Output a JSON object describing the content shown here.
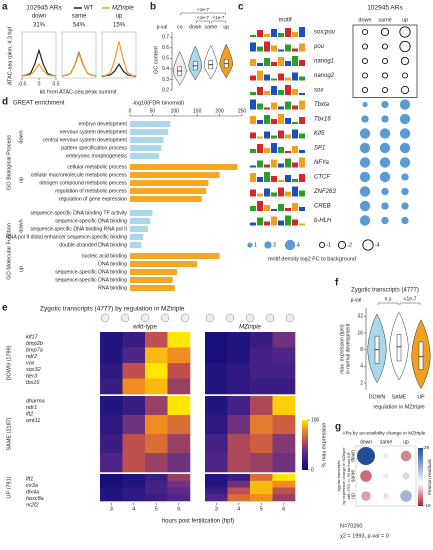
{
  "chart_data": [
    {
      "type": "line",
      "letter": "a",
      "title": "102945 ARs",
      "ylabel": "ATAC-seq rpkm, 4.3 hpf",
      "xlabel": "kb from ATAC-seq peak summit",
      "series_names": [
        "WT",
        "MZtriple"
      ],
      "colors": [
        "#222222",
        "#f0a020"
      ],
      "x": [
        -0.5,
        -0.375,
        -0.25,
        -0.125,
        0,
        0.125,
        0.25,
        0.375,
        0.5
      ],
      "xlim": [
        -0.5,
        0.5
      ],
      "xticks": [
        -0.5,
        0,
        0.5
      ],
      "ylim": [
        0,
        1
      ],
      "panels": [
        {
          "name": "down",
          "share": "31%",
          "values": [
            [
              0.05,
              0.06,
              0.1,
              0.3,
              0.6,
              0.3,
              0.1,
              0.06,
              0.05
            ],
            [
              0.05,
              0.05,
              0.07,
              0.16,
              0.3,
              0.16,
              0.07,
              0.05,
              0.05
            ]
          ]
        },
        {
          "name": "same",
          "share": "54%",
          "values": [
            [
              0.05,
              0.06,
              0.1,
              0.28,
              0.55,
              0.28,
              0.1,
              0.06,
              0.05
            ],
            [
              0.05,
              0.06,
              0.1,
              0.27,
              0.53,
              0.27,
              0.1,
              0.06,
              0.05
            ]
          ]
        },
        {
          "name": "up",
          "share": "15%",
          "values": [
            [
              0.04,
              0.05,
              0.07,
              0.15,
              0.3,
              0.15,
              0.07,
              0.05,
              0.04
            ],
            [
              0.05,
              0.06,
              0.12,
              0.4,
              0.8,
              0.4,
              0.12,
              0.06,
              0.05
            ]
          ]
        }
      ]
    },
    {
      "type": "violin",
      "letter": "b",
      "pval_label": "p-val",
      "comparisons": [
        "<1e-7",
        "<1e-7",
        "<1e-7"
      ],
      "ylabel": "GC content",
      "categories": [
        "co",
        "down",
        "same",
        "up"
      ],
      "colors": [
        "#eeeeee",
        "#a9d8ea",
        "#ffffff",
        "#f0a020"
      ],
      "medians": [
        0.38,
        0.43,
        0.44,
        0.45
      ],
      "q1": [
        0.34,
        0.39,
        0.4,
        0.41
      ],
      "q3": [
        0.42,
        0.47,
        0.48,
        0.49
      ],
      "ylim": [
        0.2,
        0.75
      ],
      "yticks": [
        0.2,
        0.3,
        0.4,
        0.5,
        0.6,
        0.7
      ]
    },
    {
      "type": "dot-matrix",
      "letter": "c",
      "motif_header": "motif",
      "title": "102945 ARs",
      "columns": [
        "down",
        "same",
        "up"
      ],
      "rows": [
        "sox;pou",
        "pou",
        "nanog1",
        "nanog2",
        "sox",
        "Tbxta",
        "Tbx16",
        "Klf5",
        "SP1",
        "NFYa",
        "CTCF",
        "ZNF263",
        "CREB",
        "b-HLH"
      ],
      "values": [
        [
          -1,
          -2,
          -4
        ],
        [
          -1,
          -1,
          -4
        ],
        [
          -1,
          -1,
          -2
        ],
        [
          -1,
          -1,
          -1
        ],
        [
          -1,
          -1,
          -2
        ],
        [
          1,
          2,
          4
        ],
        [
          2,
          2,
          4
        ],
        [
          4,
          4,
          4
        ],
        [
          4,
          4,
          4
        ],
        [
          4,
          4,
          4
        ],
        [
          4,
          4,
          2
        ],
        [
          4,
          2,
          2
        ],
        [
          4,
          2,
          2
        ],
        [
          4,
          2,
          2
        ]
      ],
      "legend_title": "motif density log2 FC to background",
      "legend_sizes": [
        1,
        2,
        4,
        -1,
        -2,
        -4
      ]
    },
    {
      "type": "barh",
      "letter": "d",
      "title": "GREAT enrichment",
      "xlabel": "-log10(FDR binomial)",
      "xlim": [
        0,
        250
      ],
      "xticks": [
        0,
        50,
        100,
        150,
        200,
        250
      ],
      "groups": [
        {
          "name": "GO Biological Process",
          "subgroups": [
            {
              "name": "down",
              "color": "#a9d8ea",
              "categories": [
                "embryo development",
                "nervous system development",
                "central nervous system development",
                "pattern specification process",
                "embryonic morphogenesis"
              ],
              "values": [
                90,
                85,
                75,
                70,
                65
              ]
            },
            {
              "name": "up",
              "color": "#f5a623",
              "categories": [
                "cellular metabolic process",
                "cellular macromolecule metabolic process",
                "nitrogen compound metabolic process",
                "regulation of metabolic process",
                "regulation of gene expression"
              ],
              "values": [
                240,
                200,
                175,
                170,
                160
              ]
            }
          ]
        },
        {
          "name": "GO Molecular Function",
          "subgroups": [
            {
              "name": "down",
              "color": "#a9d8ea",
              "categories": [
                "sequence-specific DNA binding TF activity",
                "sequence-specific DNA binding",
                "sequence-specific DNA binding RNA pol II",
                "RNA pol II distal enhancer sequence-specific binding",
                "double-stranded DNA binding"
              ],
              "values": [
                50,
                45,
                40,
                30,
                25
              ]
            },
            {
              "name": "up",
              "color": "#f5a623",
              "categories": [
                "nucleic acid binding",
                "DNA binding",
                "sequence-specific DNA binding",
                "sequence-specific DNA binding",
                "RNA binding"
              ],
              "values": [
                200,
                150,
                105,
                95,
                100
              ]
            }
          ]
        }
      ]
    },
    {
      "type": "heatmap",
      "letter": "e",
      "title": "Zygotic transcripts (4777) by regulation in MZtriple",
      "conditions": [
        "wild-type",
        "MZtriple"
      ],
      "x": [
        3,
        4,
        5,
        6
      ],
      "xlim": [
        2.5,
        6.5
      ],
      "xticks": [
        3,
        4,
        5,
        6
      ],
      "xlabel": "hours post fertilization (hpf)",
      "colorbar_label": "% max expression",
      "clim": [
        0,
        100
      ],
      "colorbar_ticks": [
        0,
        100
      ],
      "groups": [
        {
          "name": "DOWN (1799)",
          "genes": [
            "klf17",
            "bmp2b",
            "bmp7a",
            "ndr2",
            "vox",
            "sox32",
            "her3",
            "tbx16"
          ],
          "values": [
            [
              [
                10,
                20,
                60,
                100
              ],
              [
                10,
                30,
                90,
                80
              ],
              [
                15,
                60,
                100,
                60
              ],
              [
                20,
                80,
                90,
                50
              ]
            ],
            [
              [
                5,
                10,
                20,
                40
              ],
              [
                5,
                10,
                25,
                30
              ],
              [
                10,
                15,
                25,
                25
              ],
              [
                10,
                15,
                20,
                20
              ]
            ]
          ]
        },
        {
          "name": "SAME (2187)",
          "genes": [
            "dharma",
            "ndr1",
            "lft2",
            "wnt11"
          ],
          "values": [
            [
              [
                10,
                20,
                50,
                100
              ],
              [
                15,
                40,
                80,
                70
              ],
              [
                20,
                60,
                70,
                50
              ],
              [
                30,
                60,
                50,
                40
              ]
            ],
            [
              [
                10,
                25,
                55,
                95
              ],
              [
                15,
                40,
                75,
                65
              ],
              [
                25,
                55,
                65,
                45
              ],
              [
                30,
                55,
                50,
                40
              ]
            ]
          ]
        },
        {
          "name": "UP (791)",
          "genes": [
            "lft1",
            "irx3a",
            "dlx4a",
            "hoxc8a",
            "nr2f2"
          ],
          "values": [
            [
              [
                5,
                10,
                20,
                50
              ],
              [
                5,
                10,
                25,
                40
              ],
              [
                10,
                15,
                25,
                35
              ],
              [
                10,
                15,
                20,
                30
              ]
            ],
            [
              [
                10,
                20,
                70,
                100
              ],
              [
                10,
                40,
                90,
                80
              ],
              [
                20,
                60,
                90,
                60
              ],
              [
                30,
                70,
                80,
                50
              ]
            ]
          ]
        }
      ]
    },
    {
      "type": "violin",
      "letter": "f",
      "title": "Zygotic transcripts (4777)",
      "pval_label": "p-val",
      "comparisons": [
        "n.s",
        "<1e-7"
      ],
      "ylabel": [
        "max. expression (tpm)",
        "in normal development"
      ],
      "xlabel": "regulation in MZtriple",
      "categories": [
        "DOWN",
        "SAME",
        "UP"
      ],
      "colors": [
        "#a9d8ea",
        "#ffffff",
        "#f0a020"
      ],
      "medians": [
        8,
        9,
        6
      ],
      "q1": [
        4.5,
        5,
        3.5
      ],
      "q3": [
        14,
        15,
        11
      ],
      "ylim": [
        1.5,
        45
      ],
      "yticks": [
        2,
        4,
        8,
        16,
        32
      ],
      "log_scale": true
    },
    {
      "type": "bubble-matrix",
      "letter": "g",
      "title": "ARs by accessibility change in MZtriple",
      "columns": [
        "down",
        "same",
        "up"
      ],
      "rows": [
        "down",
        "same",
        "up"
      ],
      "ylabel": [
        "zygotic transcripts",
        "by expression change in MZtriple",
        "with TSS <= 50 kb from AR"
      ],
      "values": [
        [
          29,
          -2,
          -10
        ],
        [
          -12,
          3,
          5
        ],
        [
          -8,
          -3,
          12
        ]
      ],
      "clim": [
        -19,
        29
      ],
      "colorbar_ticks": [
        -19,
        29
      ],
      "colorbar_label": "Pearson residuals",
      "notes": [
        "N=70260",
        "χ2 = 1993, p-val = 0"
      ]
    }
  ]
}
